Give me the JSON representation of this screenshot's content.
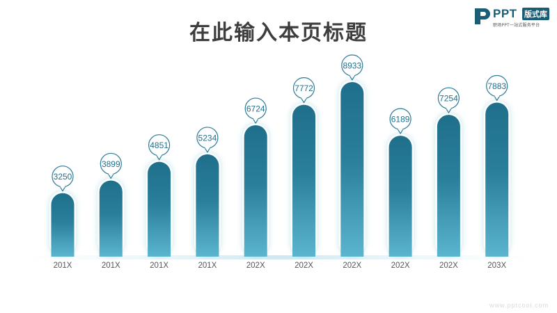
{
  "title": "在此输入本页标题",
  "logo": {
    "brand": "PPT",
    "box": "版式库",
    "tagline": "职场PPT一站式服务平台"
  },
  "watermark": "www.pptcool.com",
  "colors": {
    "bar_top": "#1f6f8b",
    "bar_bottom": "#5bb5cf",
    "bubble_stroke": "#2a7a96",
    "label_text": "#1f6f8b",
    "axis_text": "#555555"
  },
  "chart_data": {
    "type": "bar",
    "categories": [
      "201X",
      "201X",
      "201X",
      "201X",
      "202X",
      "202X",
      "202X",
      "202X",
      "202X",
      "203X"
    ],
    "values": [
      3250,
      3899,
      4851,
      5234,
      6724,
      7772,
      8933,
      6189,
      7254,
      7883
    ],
    "ylim": [
      0,
      10000
    ],
    "grid": false,
    "legend": "none"
  }
}
